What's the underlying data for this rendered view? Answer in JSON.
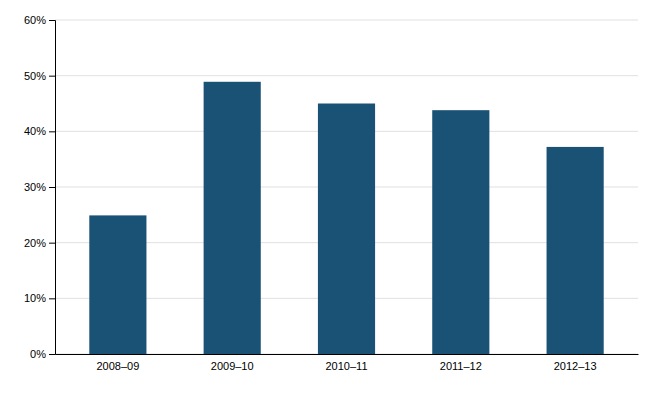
{
  "chart_data": {
    "type": "bar",
    "categories": [
      "2008–09",
      "2009–10",
      "2010–11",
      "2011–12",
      "2012–13"
    ],
    "values": [
      0.249,
      0.489,
      0.45,
      0.438,
      0.372
    ],
    "color": "#1a5276",
    "ylim": [
      0,
      0.6
    ],
    "yticks": [
      {
        "value": 0.0,
        "label": "0%"
      },
      {
        "value": 0.1,
        "label": "10%"
      },
      {
        "value": 0.2,
        "label": "20%"
      },
      {
        "value": 0.3,
        "label": "30%"
      },
      {
        "value": 0.4,
        "label": "40%"
      },
      {
        "value": 0.5,
        "label": "50%"
      },
      {
        "value": 0.6,
        "label": "60%"
      }
    ],
    "grid": true
  }
}
